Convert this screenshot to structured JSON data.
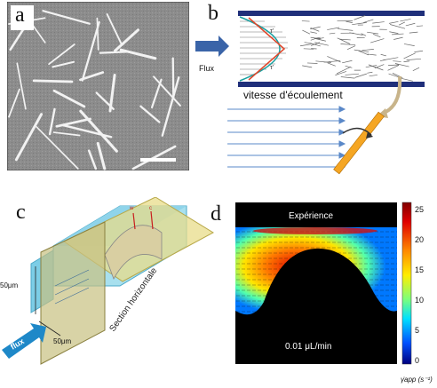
{
  "panels": {
    "a": {
      "letter": "a"
    },
    "b": {
      "letter": "b",
      "flux_label": "Flux",
      "tau1": "τ'",
      "tau2": "τ'",
      "speed_label": "vitesse d'écoulement"
    },
    "c": {
      "letter": "c",
      "dim_left": "50μm",
      "dim_bottom": "50μm",
      "flux_label": "flux",
      "section_label": "Section horizontale",
      "w_label": "w",
      "c_label": "c"
    },
    "d": {
      "letter": "d",
      "title": "Expérience",
      "flow_rate": "0.01 μL/min",
      "colorbar": {
        "ticks": [
          "25",
          "20",
          "15",
          "10",
          "5",
          "0"
        ],
        "label": "γ̇app (s⁻¹)",
        "colors": [
          "#7f0000",
          "#d40000",
          "#ff3a00",
          "#ff9500",
          "#ffe600",
          "#a8ff52",
          "#36ffc8",
          "#00b4ff",
          "#0050ff",
          "#0000c8",
          "#00007f"
        ]
      }
    }
  }
}
